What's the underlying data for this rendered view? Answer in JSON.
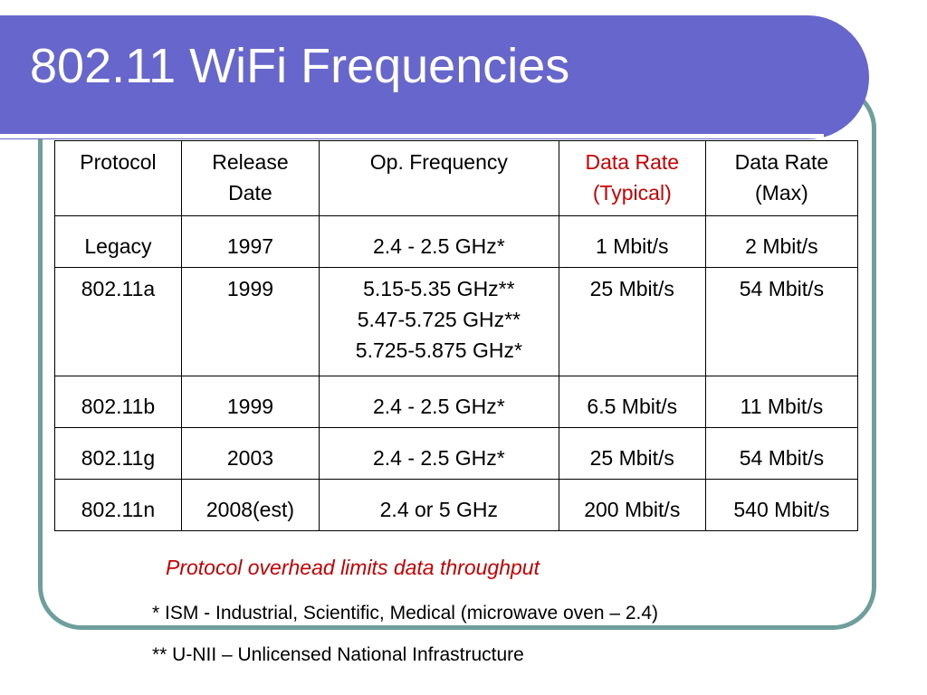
{
  "slide": {
    "title": "802.11 WiFi Frequencies"
  },
  "table": {
    "headers": {
      "protocol": "Protocol",
      "release_date_1": "Release",
      "release_date_2": "Date",
      "op_frequency": "Op. Frequency",
      "rate_typical_1": "Data Rate",
      "rate_typical_2": "(Typical)",
      "rate_max_1": "Data Rate",
      "rate_max_2": "(Max)"
    },
    "rows": [
      {
        "protocol": "Legacy",
        "date": "1997",
        "freq": [
          "2.4 - 2.5 GHz*"
        ],
        "typical": "1 Mbit/s",
        "max": "2 Mbit/s"
      },
      {
        "protocol": "802.11a",
        "date": "1999",
        "freq": [
          "5.15-5.35 GHz**",
          "5.47-5.725 GHz**",
          "5.725-5.875 GHz*"
        ],
        "typical": "25 Mbit/s",
        "max": "54 Mbit/s"
      },
      {
        "protocol": "802.11b",
        "date": "1999",
        "freq": [
          "2.4 - 2.5 GHz*"
        ],
        "typical": "6.5 Mbit/s",
        "max": "11 Mbit/s"
      },
      {
        "protocol": "802.11g",
        "date": "2003",
        "freq": [
          "2.4 - 2.5 GHz*"
        ],
        "typical": "25 Mbit/s",
        "max": "54 Mbit/s"
      },
      {
        "protocol": "802.11n",
        "date": "2008(est)",
        "freq": [
          "2.4 or 5 GHz"
        ],
        "typical": "200 Mbit/s",
        "max": "540 Mbit/s"
      }
    ]
  },
  "notes": {
    "overhead": "Protocol overhead limits data throughput",
    "ism": "* ISM - Industrial, Scientific, Medical (microwave oven – 2.4)",
    "unii": "** U-NII – Unlicensed National Infrastructure"
  },
  "colors": {
    "title_bar": "#6666cc",
    "frame_border": "#6f9f9c",
    "accent_red": "#cc0000"
  }
}
